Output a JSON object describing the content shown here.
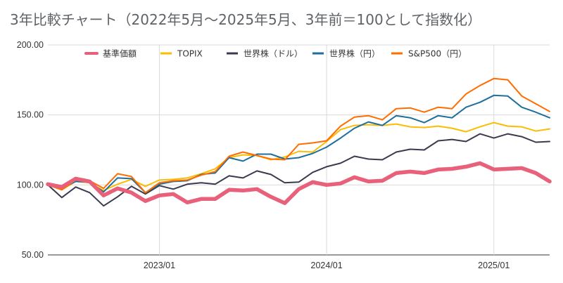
{
  "chart_data": {
    "type": "line",
    "title": "3年比較チャート（2022年5月〜2025年5月、3年前＝100として指数化）",
    "xlabel": "",
    "ylabel": "",
    "ylim": [
      50,
      200
    ],
    "yticks": [
      "200.00",
      "150.00",
      "100.00",
      "50.00"
    ],
    "xticks": [
      "2023/01",
      "2024/01",
      "2025/01"
    ],
    "grid": true,
    "legend_position": "top",
    "x": [
      "2022/05",
      "2022/06",
      "2022/07",
      "2022/08",
      "2022/09",
      "2022/10",
      "2022/11",
      "2022/12",
      "2023/01",
      "2023/02",
      "2023/03",
      "2023/04",
      "2023/05",
      "2023/06",
      "2023/07",
      "2023/08",
      "2023/09",
      "2023/10",
      "2023/11",
      "2023/12",
      "2024/01",
      "2024/02",
      "2024/03",
      "2024/04",
      "2024/05",
      "2024/06",
      "2024/07",
      "2024/08",
      "2024/09",
      "2024/10",
      "2024/11",
      "2024/12",
      "2025/01",
      "2025/02",
      "2025/03",
      "2025/04",
      "2025/05"
    ],
    "series": [
      {
        "name": "基準価額",
        "color": "#e8607a",
        "values": [
          100.5,
          98.5,
          104.5,
          102.5,
          92.5,
          97.5,
          94.5,
          88.5,
          92.5,
          93.5,
          87.5,
          90,
          90,
          96.5,
          96,
          97,
          91.5,
          87,
          97,
          102,
          100,
          101,
          105.5,
          102.5,
          103,
          108.5,
          109.5,
          108.5,
          111,
          111.5,
          113,
          115.5,
          111,
          111.5,
          112,
          108.5,
          102.5
        ]
      },
      {
        "name": "TOPIX",
        "color": "#fbbc04",
        "values": [
          100,
          96.5,
          102.5,
          101.5,
          96,
          100.5,
          104,
          99,
          103.5,
          104,
          105,
          108,
          111.5,
          119.5,
          121.5,
          121,
          118,
          120,
          124,
          123.5,
          131,
          139.5,
          142.5,
          143,
          142.5,
          143.5,
          141.5,
          141,
          142,
          140.5,
          138,
          141.5,
          144.5,
          142,
          141.5,
          138.5,
          140
        ]
      },
      {
        "name": "世界株（ドル）",
        "color": "#3c3a4e",
        "values": [
          100,
          91,
          98.5,
          94.5,
          85,
          91.5,
          99,
          93.5,
          99.5,
          97,
          100.5,
          101.5,
          100.5,
          106.5,
          105,
          110,
          107.5,
          101.5,
          102,
          109,
          113,
          115.5,
          120.5,
          118.5,
          118,
          123.5,
          125.5,
          125,
          131.5,
          132.5,
          131,
          136.5,
          133.5,
          136.5,
          134.5,
          130.5,
          131
        ]
      },
      {
        "name": "世界株（円）",
        "color": "#1f6f9c",
        "values": [
          100,
          97.5,
          102.5,
          102,
          95,
          105,
          104.5,
          94.5,
          100.5,
          102.5,
          103,
          107.5,
          108.5,
          119.5,
          117,
          122,
          122,
          118.5,
          119.5,
          122.5,
          127,
          133.5,
          140.5,
          145,
          142.5,
          149.5,
          148,
          144.5,
          149.5,
          148,
          155.5,
          159,
          164,
          163.5,
          155.5,
          152,
          148
        ]
      },
      {
        "name": "S&P500（円）",
        "color": "#ff6d01",
        "values": [
          100,
          96.5,
          103.5,
          103,
          97.5,
          108,
          106,
          94.5,
          101.5,
          103,
          103.5,
          107,
          109.5,
          120.5,
          123.5,
          121,
          118.5,
          118,
          129,
          130,
          131.5,
          142,
          148.5,
          149.5,
          146.5,
          154.5,
          155,
          152,
          155.5,
          154.5,
          165,
          171,
          176,
          175,
          163.5,
          158,
          152.5
        ]
      }
    ]
  }
}
